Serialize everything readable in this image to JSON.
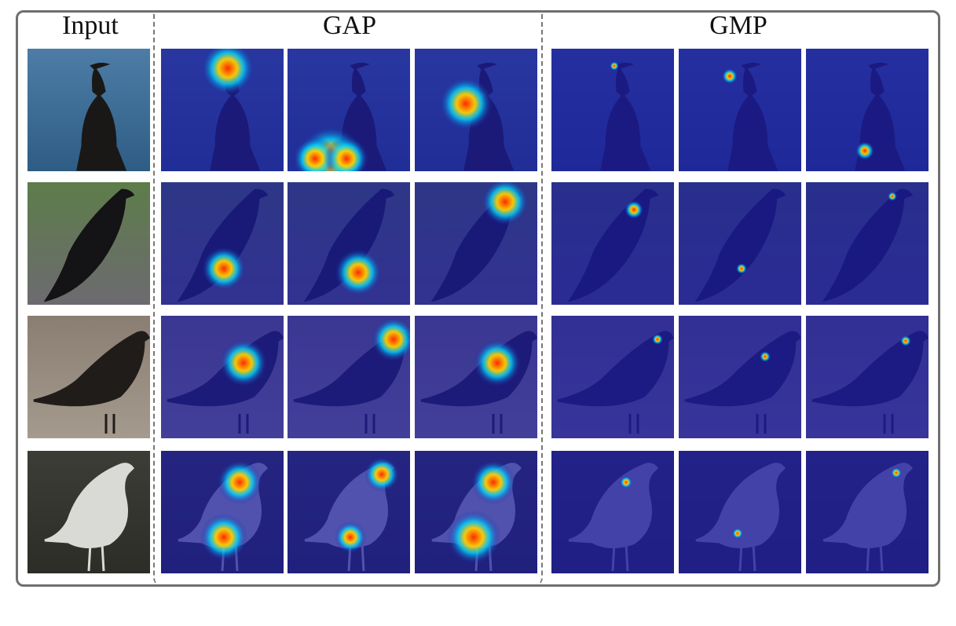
{
  "headers": {
    "input": "Input",
    "gap": "GAP",
    "gmp": "GMP"
  },
  "palette": {
    "heat_low": "#1c1c9e",
    "heat_mid": "#00d6ff",
    "heat_high": "#ff2a00",
    "frame": "#6f6f6f"
  },
  "rows": [
    {
      "subject": "cormorant-on-rock",
      "bg": [
        "#4d7da6",
        "#2e5c85"
      ],
      "bird": "#1a1816"
    },
    {
      "subject": "crow-on-railing",
      "bg": [
        "#5d7d4a",
        "#6d6a70"
      ],
      "bird": "#141315"
    },
    {
      "subject": "crow-on-ground",
      "bg": [
        "#8a7e72",
        "#a59a8e"
      ],
      "bird": "#201c19"
    },
    {
      "subject": "gull-on-ground",
      "bg": [
        "#3d3d37",
        "#2d2d28"
      ],
      "bird": "#d9d9d6"
    }
  ]
}
